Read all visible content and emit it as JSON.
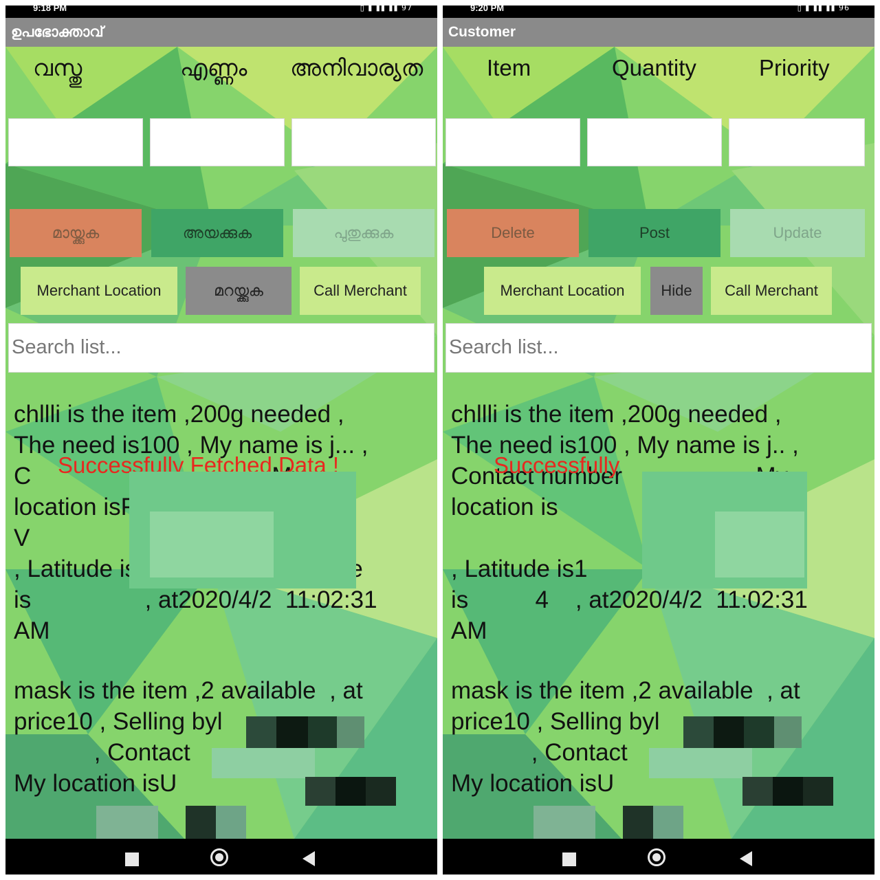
{
  "left": {
    "status_time": "9:18 PM",
    "status_icons": "▯ ▮ ▮▮ ▮▮ 97",
    "title": "ഉപഭോക്താവ്",
    "headers": [
      "വസ്തു",
      "എണ്ണം",
      "അനിവാര്യത"
    ],
    "buttons": {
      "delete": "മായ്ക്കുക",
      "post": "അയക്കുക",
      "update": "പുതുക്കുക",
      "merchant_location": "Merchant Location",
      "hide": "മറയ്ക്കുക",
      "call_merchant": "Call Merchant"
    },
    "search_placeholder": "Search list...",
    "toast": "Successfully Fetched Data !",
    "items": [
      "chllli is the item ,200g needed ,\nThe need is100 , My name is j... ,\nC                                  , My\nlocation isF\nV                                  ndia\n, Latitude is1              , Longitude\nis                 , at2020/4/2  11:02:31\nAM",
      "mask is the item ,2 available  , at\nprice10 , Selling byl\n            , Contact\nMy location isU"
    ]
  },
  "right": {
    "status_time": "9:20 PM",
    "status_icons": "▯ ▮ ▮▮ ▮▮ 96",
    "title": "Customer",
    "headers": [
      "Item",
      "Quantity",
      "Priority"
    ],
    "buttons": {
      "delete": "Delete",
      "post": "Post",
      "update": "Update",
      "merchant_location": "Merchant Location",
      "hide": "Hide",
      "call_merchant": "Call Merchant"
    },
    "search_placeholder": "Search list...",
    "toast": "Successfully",
    "items": [
      "chllli is the item ,200g needed ,\nThe need is100 , My name is j.. ,\nContact number                  , My\nlocation is\n                                   India\n, Latitude is1              , Longitude\nis          4    , at2020/4/2  11:02:31\nAM",
      "mask is the item ,2 available  , at\nprice10 , Selling byl\n            , Contact\nMy location isU"
    ]
  }
}
